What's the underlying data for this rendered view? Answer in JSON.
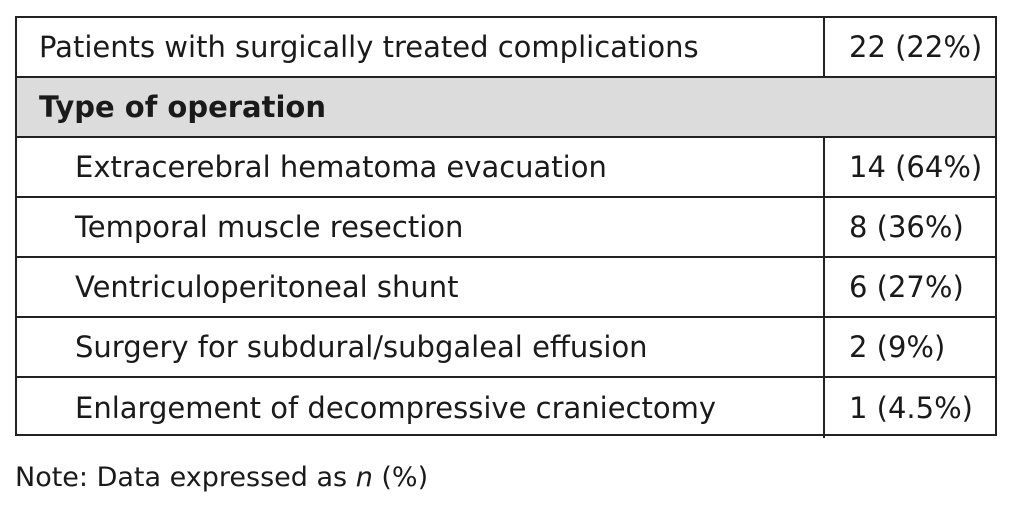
{
  "table": {
    "summary_row": {
      "label": "Patients with surgically treated complications",
      "value": "22 (22%)"
    },
    "section_header": "Type of operation",
    "rows": [
      {
        "label": "Extracerebral hematoma evacuation",
        "value": "14 (64%)"
      },
      {
        "label": "Temporal muscle resection",
        "value": "8 (36%)"
      },
      {
        "label": "Ventriculoperitoneal shunt",
        "value": "6 (27%)"
      },
      {
        "label": "Surgery for subdural/subgaleal effusion",
        "value": "2 (9%)"
      },
      {
        "label": "Enlargement of decompressive craniectomy",
        "value": "1 (4.5%)"
      }
    ]
  },
  "note": {
    "prefix": "Note: Data expressed as ",
    "italic": "n",
    "suffix": " (%)"
  },
  "colors": {
    "border": "#222222",
    "header_background": "#dcdcdc",
    "text": "#1a1a1a"
  }
}
